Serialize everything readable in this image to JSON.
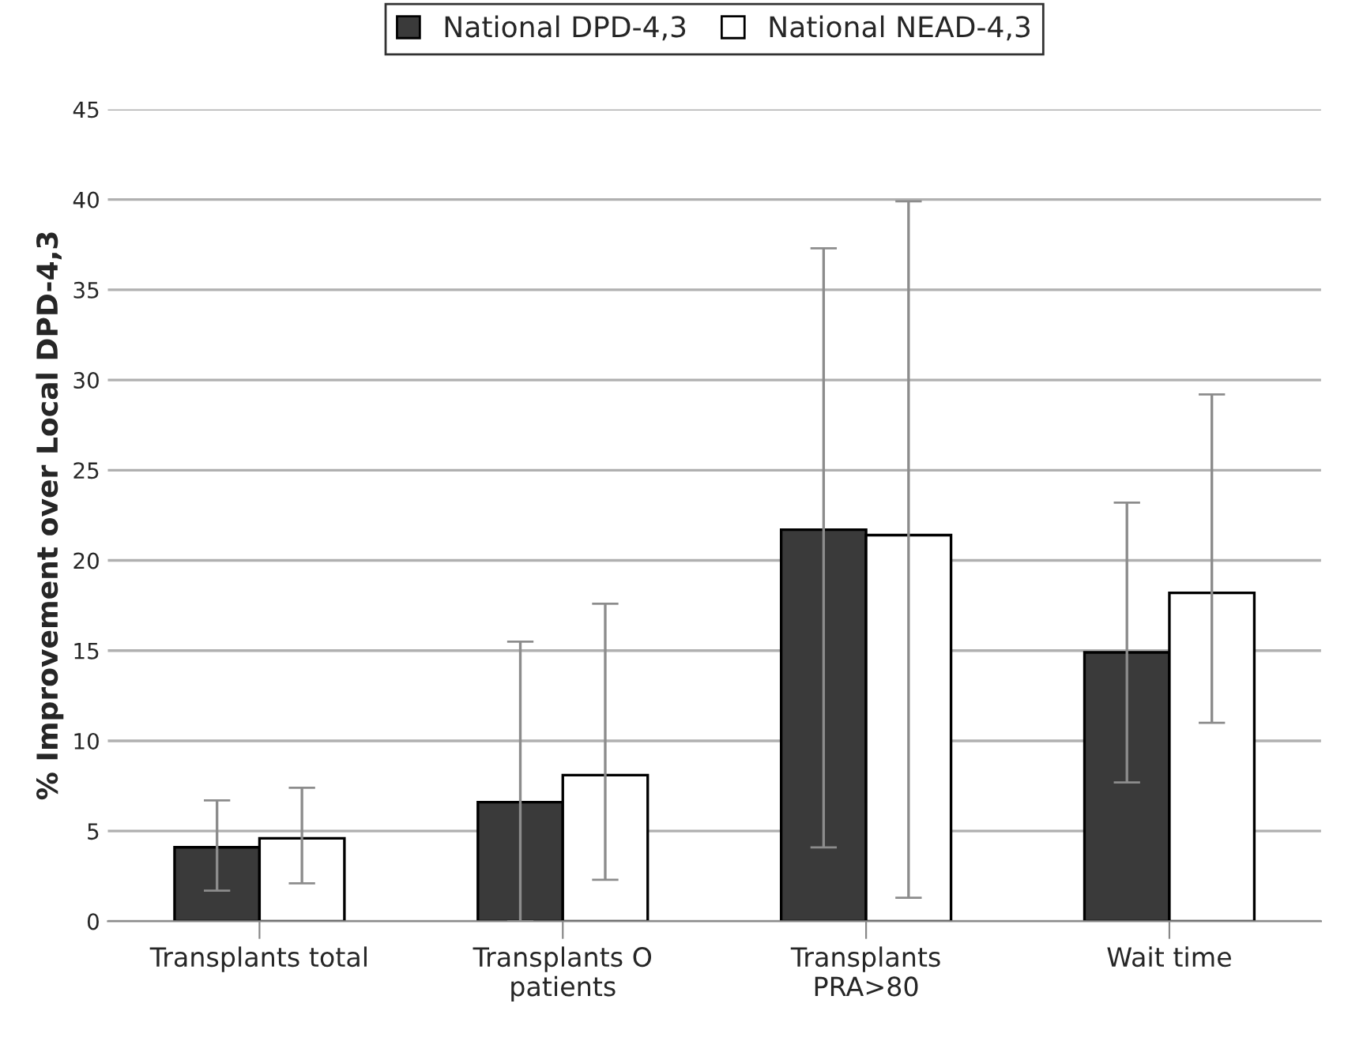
{
  "chart_data": {
    "type": "bar",
    "ylabel": "% Improvement over Local DPD-4,3",
    "categories": [
      "Transplants total",
      "Transplants O\npatients",
      "Transplants\nPRA>80",
      "Wait time"
    ],
    "series": [
      {
        "name": "National DPD-4,3",
        "color": "#3a3a3a",
        "values": [
          4.1,
          6.6,
          21.7,
          14.9
        ],
        "errors": [
          [
            1.7,
            6.7
          ],
          [
            0,
            15.5
          ],
          [
            4.1,
            37.3
          ],
          [
            7.7,
            23.2
          ]
        ]
      },
      {
        "name": "National NEAD-4,3",
        "color": "#ffffff",
        "values": [
          4.6,
          8.1,
          21.4,
          18.2
        ],
        "errors": [
          [
            2.1,
            7.4
          ],
          [
            2.3,
            17.6
          ],
          [
            1.3,
            39.9
          ],
          [
            11.0,
            29.2
          ]
        ]
      }
    ],
    "ylim": [
      0,
      45
    ],
    "yticks": [
      0,
      5,
      10,
      15,
      20,
      25,
      30,
      35,
      40,
      45
    ],
    "grid": "y",
    "legend": "top"
  }
}
